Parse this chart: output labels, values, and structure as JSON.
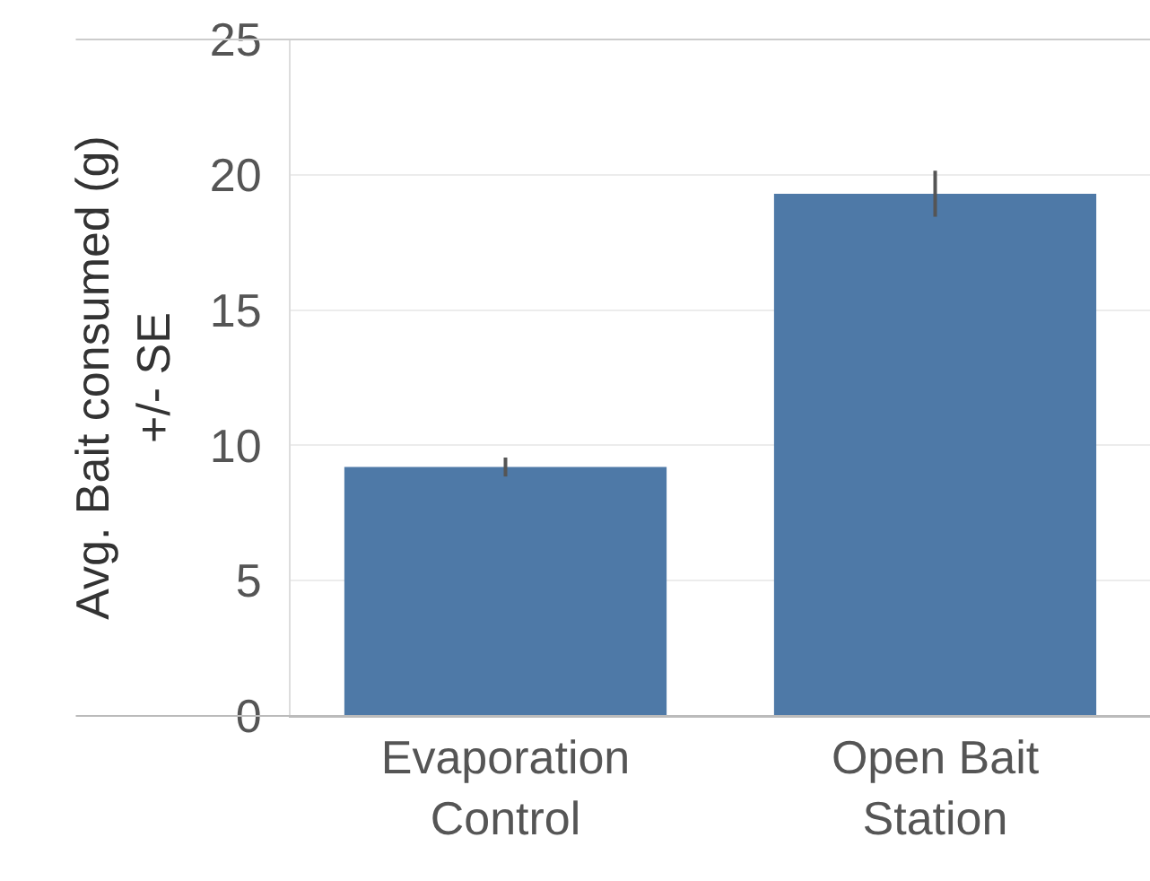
{
  "chart_data": {
    "type": "bar",
    "ylabel": "Avg. Bait consumed (g)\n+/- SE",
    "categories": [
      "Evaporation Control",
      "Open Bait Station"
    ],
    "values": [
      9.2,
      19.3
    ],
    "errors": [
      0.35,
      0.85
    ],
    "color": "#4e79a7",
    "ylim": [
      0,
      25
    ],
    "yticks": [
      0,
      5,
      10,
      15,
      20,
      25
    ],
    "grid": "y"
  }
}
